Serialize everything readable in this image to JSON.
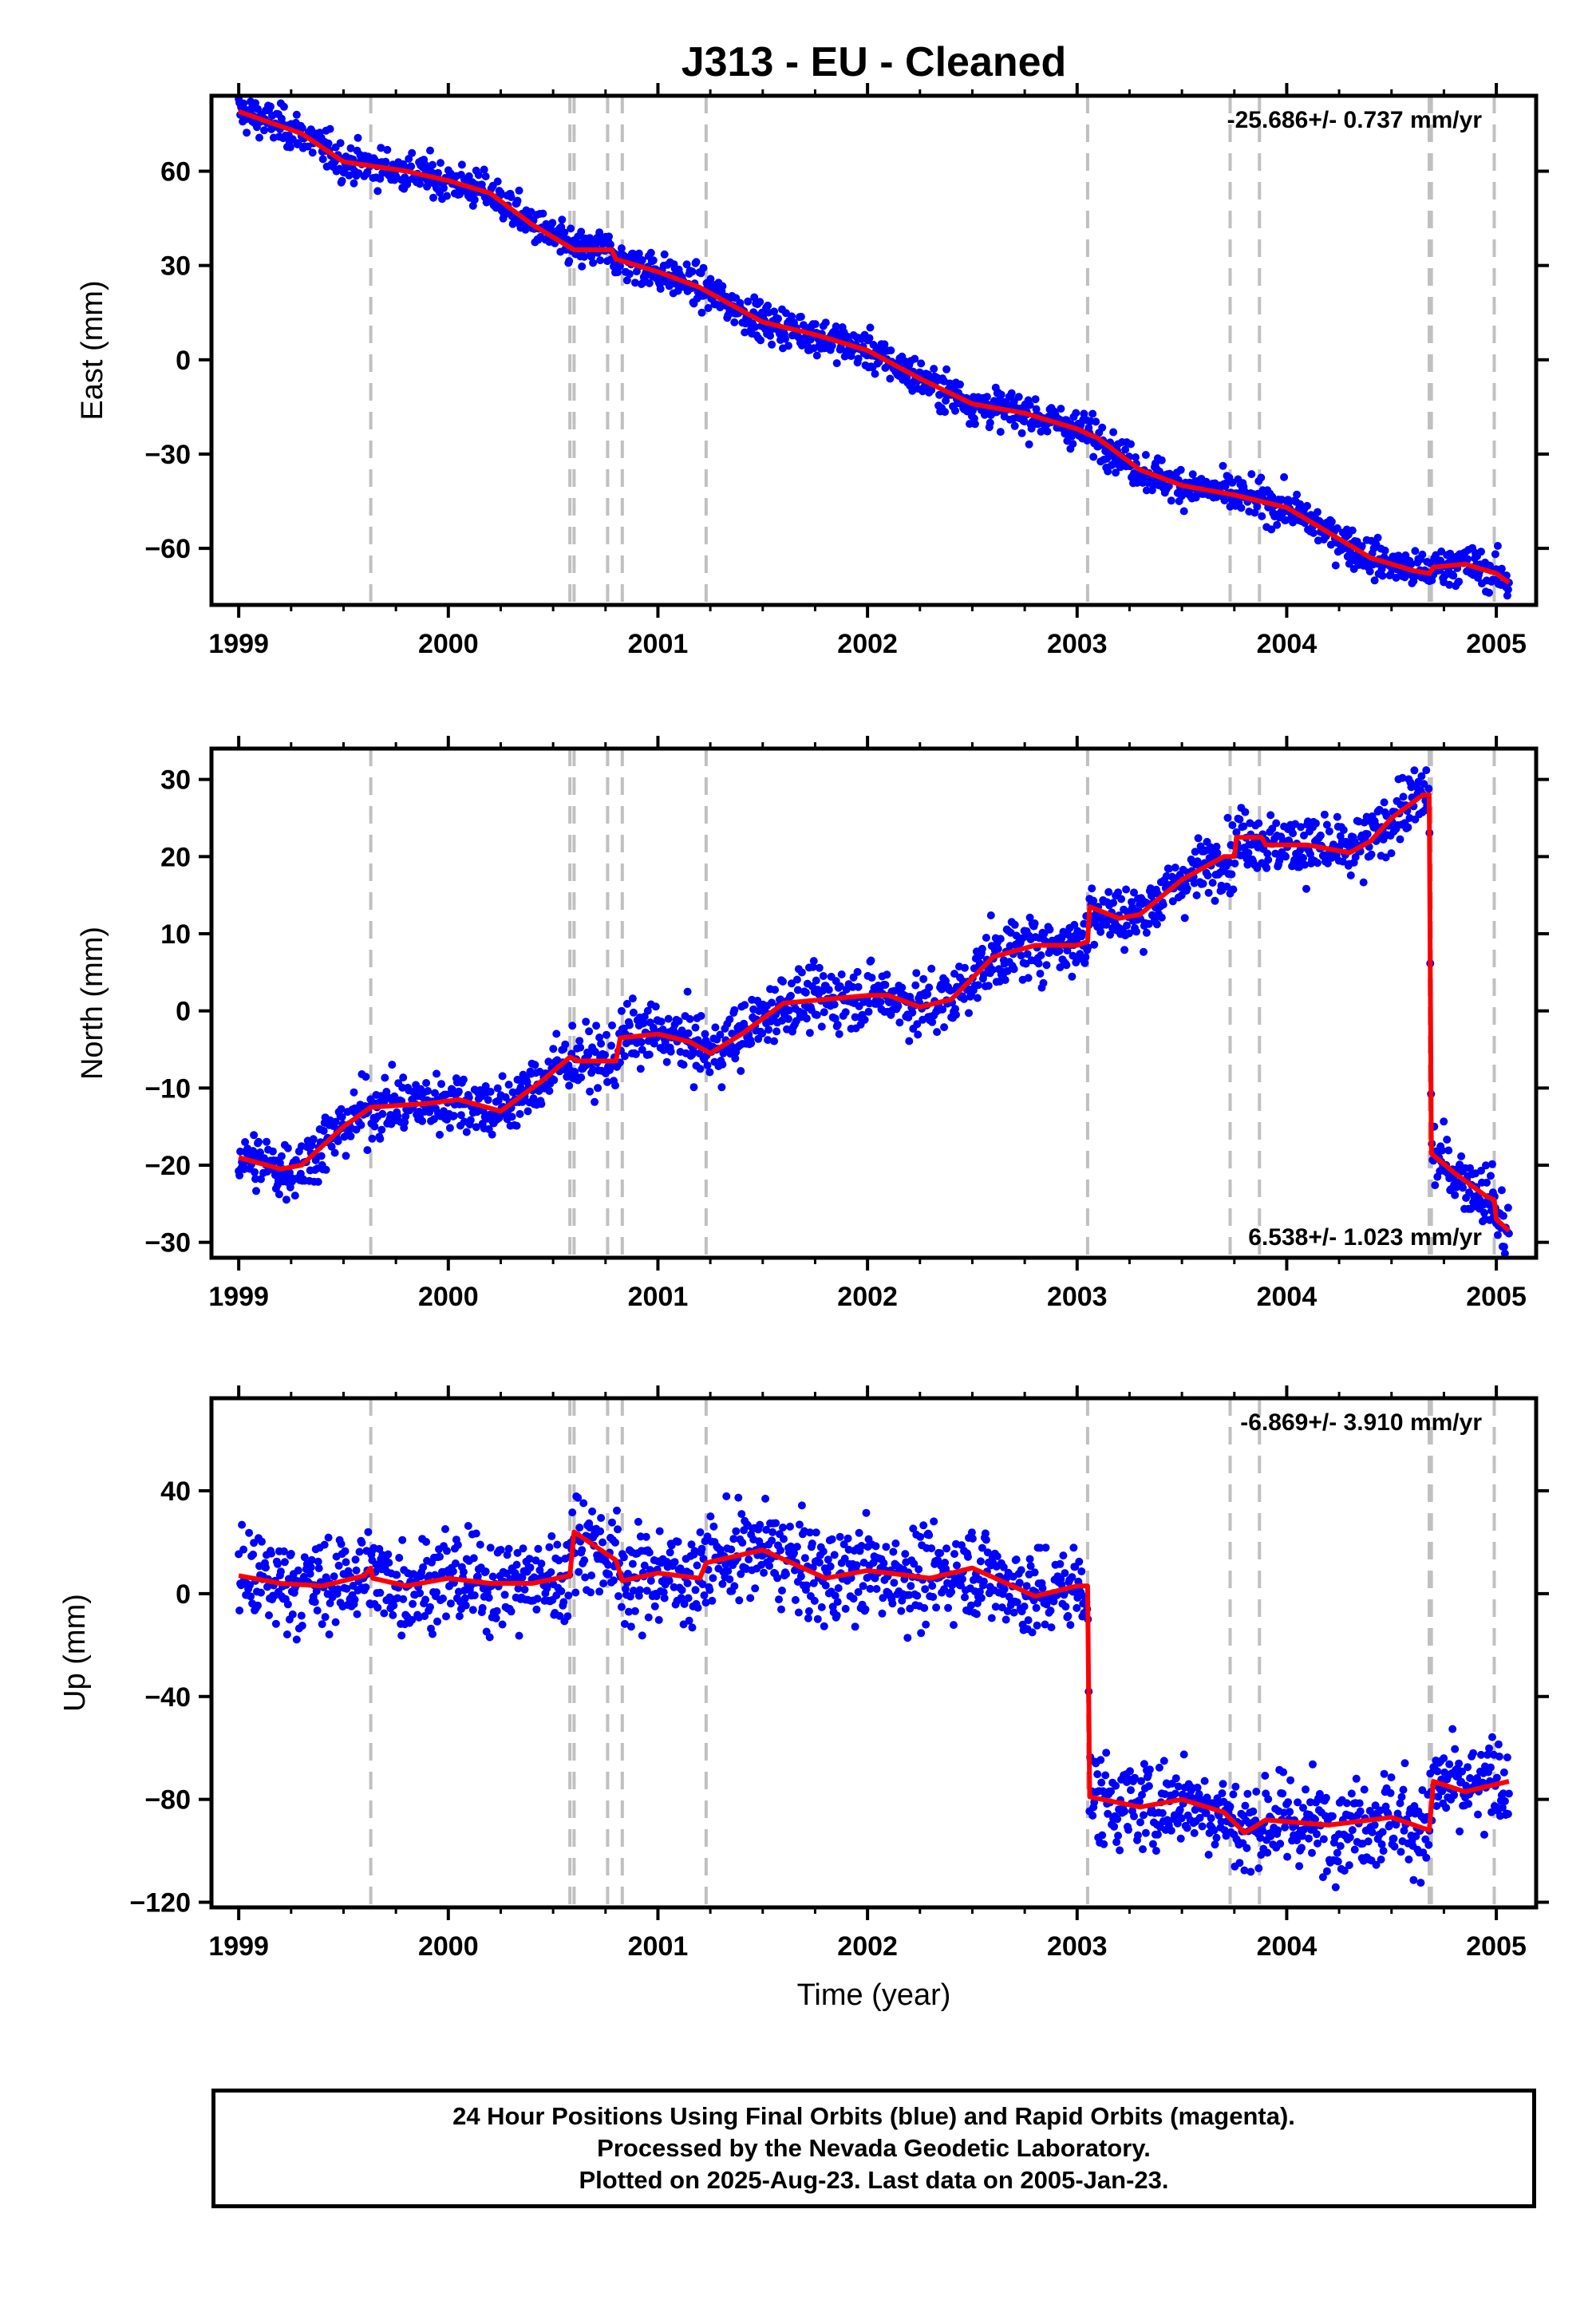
{
  "title": "J313  - EU - Cleaned",
  "colors": {
    "data": "#0000ff",
    "model": "#ff0000",
    "event_line": "#c0c0c0",
    "frame": "#000000"
  },
  "chart_data": [
    {
      "type": "scatter",
      "ylabel": "East (mm)",
      "xlim": [
        1998.87,
        2005.19
      ],
      "ylim": [
        -78,
        84
      ],
      "yticks": [
        60,
        30,
        0,
        -30,
        -60
      ],
      "xticks": [
        1999,
        2000,
        2001,
        2002,
        2003,
        2004,
        2005
      ],
      "rate_label": "-25.686+/- 0.737 mm/yr",
      "rate_label_position": "top-right",
      "series": [
        {
          "role": "daily positions",
          "color": "#0000ff",
          "model_points": [
            [
              1999.0,
              79
            ],
            [
              1999.3,
              72
            ],
            [
              1999.5,
              63
            ],
            [
              1999.8,
              60
            ],
            [
              2000.0,
              57
            ],
            [
              2000.2,
              53
            ],
            [
              2000.4,
              43
            ],
            [
              2000.6,
              35
            ],
            [
              2000.62,
              35
            ],
            [
              2000.78,
              35
            ],
            [
              2000.8,
              32
            ],
            [
              2001.0,
              28
            ],
            [
              2001.2,
              23
            ],
            [
              2001.5,
              12
            ],
            [
              2001.75,
              8
            ],
            [
              2002.0,
              3
            ],
            [
              2002.25,
              -6
            ],
            [
              2002.5,
              -14
            ],
            [
              2002.75,
              -17
            ],
            [
              2003.0,
              -22
            ],
            [
              2003.1,
              -25
            ],
            [
              2003.3,
              -35
            ],
            [
              2003.5,
              -40
            ],
            [
              2003.75,
              -43
            ],
            [
              2004.0,
              -47
            ],
            [
              2004.2,
              -55
            ],
            [
              2004.4,
              -63
            ],
            [
              2004.6,
              -67
            ],
            [
              2004.68,
              -68
            ],
            [
              2004.7,
              -66
            ],
            [
              2004.85,
              -65
            ],
            [
              2005.0,
              -68
            ],
            [
              2005.06,
              -71
            ]
          ],
          "scatter_spread": 3
        }
      ]
    },
    {
      "type": "scatter",
      "ylabel": "North (mm)",
      "xlim": [
        1998.87,
        2005.19
      ],
      "ylim": [
        -32,
        34
      ],
      "yticks": [
        30,
        20,
        10,
        0,
        -10,
        -20,
        -30
      ],
      "xticks": [
        1999,
        2000,
        2001,
        2002,
        2003,
        2004,
        2005
      ],
      "rate_label": "6.538+/- 1.023 mm/yr",
      "rate_label_position": "bottom-right",
      "series": [
        {
          "role": "daily positions",
          "color": "#0000ff",
          "model_points": [
            [
              1999.0,
              -19
            ],
            [
              1999.2,
              -20.5
            ],
            [
              1999.3,
              -20
            ],
            [
              1999.5,
              -15
            ],
            [
              1999.63,
              -12.5
            ],
            [
              1999.9,
              -12
            ],
            [
              2000.05,
              -11.5
            ],
            [
              2000.25,
              -13
            ],
            [
              2000.45,
              -9
            ],
            [
              2000.58,
              -6
            ],
            [
              2000.62,
              -6.5
            ],
            [
              2000.8,
              -6.5
            ],
            [
              2000.82,
              -3.5
            ],
            [
              2001.0,
              -3
            ],
            [
              2001.15,
              -4
            ],
            [
              2001.25,
              -5.5
            ],
            [
              2001.4,
              -3
            ],
            [
              2001.6,
              1
            ],
            [
              2001.8,
              1.5
            ],
            [
              2002.0,
              2
            ],
            [
              2002.1,
              2
            ],
            [
              2002.25,
              0.5
            ],
            [
              2002.4,
              1.5
            ],
            [
              2002.6,
              7
            ],
            [
              2002.8,
              8.5
            ],
            [
              2003.0,
              8.5
            ],
            [
              2003.05,
              9
            ],
            [
              2003.06,
              13.5
            ],
            [
              2003.2,
              12
            ],
            [
              2003.3,
              12.5
            ],
            [
              2003.5,
              17
            ],
            [
              2003.7,
              20
            ],
            [
              2003.75,
              20
            ],
            [
              2003.76,
              22.5
            ],
            [
              2003.88,
              22.5
            ],
            [
              2003.9,
              21.5
            ],
            [
              2004.1,
              21.5
            ],
            [
              2004.3,
              20.5
            ],
            [
              2004.4,
              22
            ],
            [
              2004.5,
              25
            ],
            [
              2004.65,
              28
            ],
            [
              2004.68,
              28
            ],
            [
              2004.69,
              -18.5
            ],
            [
              2004.8,
              -21
            ],
            [
              2004.95,
              -24
            ],
            [
              2004.99,
              -24.5
            ],
            [
              2005.0,
              -27
            ],
            [
              2005.06,
              -28.5
            ]
          ],
          "scatter_spread": 2
        }
      ]
    },
    {
      "type": "scatter",
      "ylabel": "Up (mm)",
      "xlabel": "Time (year)",
      "xlim": [
        1998.87,
        2005.19
      ],
      "ylim": [
        -122,
        76
      ],
      "yticks": [
        40,
        0,
        -40,
        -80,
        -120
      ],
      "xticks": [
        1999,
        2000,
        2001,
        2002,
        2003,
        2004,
        2005
      ],
      "rate_label": "-6.869+/- 3.910 mm/yr",
      "rate_label_position": "top-right",
      "series": [
        {
          "role": "daily positions",
          "color": "#0000ff",
          "model_points": [
            [
              1999.0,
              7
            ],
            [
              1999.2,
              4
            ],
            [
              1999.4,
              3
            ],
            [
              1999.6,
              7
            ],
            [
              1999.63,
              10
            ],
            [
              1999.64,
              6
            ],
            [
              1999.8,
              3
            ],
            [
              2000.0,
              6
            ],
            [
              2000.2,
              4
            ],
            [
              2000.4,
              4
            ],
            [
              2000.58,
              7
            ],
            [
              2000.6,
              24
            ],
            [
              2000.8,
              13
            ],
            [
              2000.83,
              5
            ],
            [
              2001.0,
              8
            ],
            [
              2001.2,
              6
            ],
            [
              2001.23,
              12
            ],
            [
              2001.5,
              17
            ],
            [
              2001.8,
              6
            ],
            [
              2002.0,
              9
            ],
            [
              2002.3,
              6
            ],
            [
              2002.5,
              10
            ],
            [
              2002.8,
              -1
            ],
            [
              2003.0,
              3
            ],
            [
              2003.05,
              3
            ],
            [
              2003.06,
              -79
            ],
            [
              2003.3,
              -83
            ],
            [
              2003.5,
              -80
            ],
            [
              2003.7,
              -85
            ],
            [
              2003.8,
              -93
            ],
            [
              2003.9,
              -88
            ],
            [
              2004.2,
              -90
            ],
            [
              2004.5,
              -87
            ],
            [
              2004.68,
              -92
            ],
            [
              2004.7,
              -73
            ],
            [
              2004.85,
              -77
            ],
            [
              2005.06,
              -73
            ]
          ],
          "scatter_spread": 9
        }
      ]
    }
  ],
  "event_lines": [
    1999.63,
    2000.58,
    2000.6,
    2000.76,
    2000.83,
    2001.23,
    2003.05,
    2003.73,
    2003.87,
    2004.68,
    2004.69,
    2004.99
  ],
  "footer": {
    "line1": "24 Hour Positions Using Final Orbits (blue) and Rapid Orbits (magenta).",
    "line2": "Processed by the Nevada Geodetic Laboratory.",
    "line3": "Plotted on 2025-Aug-23. Last data on 2005-Jan-23."
  }
}
